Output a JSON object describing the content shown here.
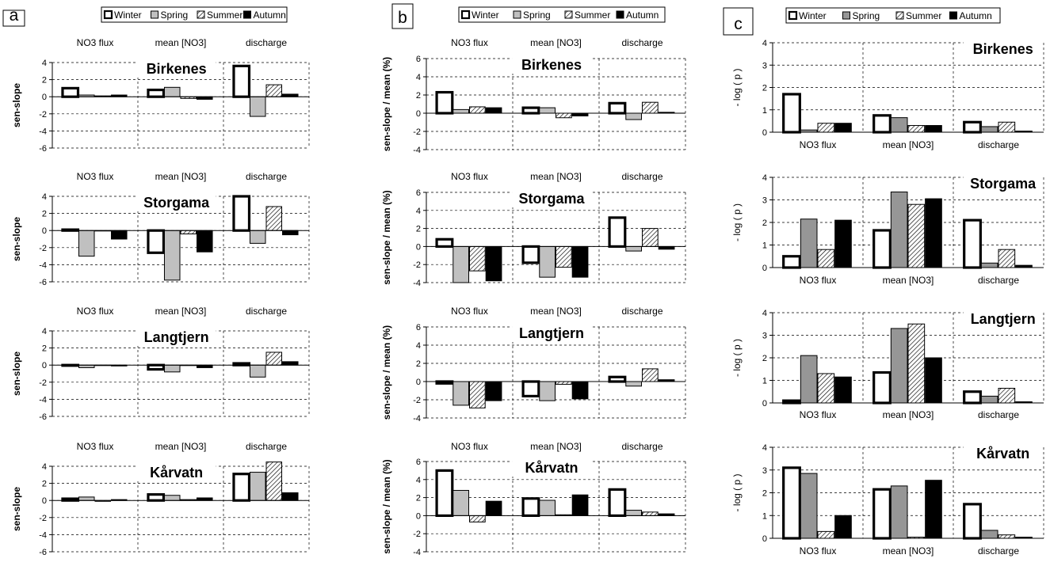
{
  "panels": [
    {
      "letter": "a",
      "legend": [
        "Winter",
        "Spring",
        "Summer",
        "Autumn"
      ],
      "categories": [
        "NO3 flux",
        "mean [NO3]",
        "discharge"
      ],
      "ylabel": "sen-slope",
      "ylim": [
        -6,
        4
      ],
      "yticks": [
        4,
        2,
        0,
        -2,
        -4,
        -6
      ],
      "category_labels_position": "top",
      "chart_data": [
        {
          "type": "bar",
          "title": "Birkenes",
          "series": [
            {
              "name": "Winter",
              "values": [
                1.0,
                0.8,
                3.6
              ]
            },
            {
              "name": "Spring",
              "values": [
                0.2,
                1.1,
                -2.3
              ]
            },
            {
              "name": "Summer",
              "values": [
                0.1,
                -0.2,
                1.4
              ]
            },
            {
              "name": "Autumn",
              "values": [
                0.2,
                -0.3,
                0.3
              ]
            }
          ]
        },
        {
          "type": "bar",
          "title": "Storgama",
          "series": [
            {
              "name": "Winter",
              "values": [
                0.1,
                -2.6,
                4.0
              ]
            },
            {
              "name": "Spring",
              "values": [
                -3.0,
                -5.8,
                -1.5
              ]
            },
            {
              "name": "Summer",
              "values": [
                0.0,
                -0.4,
                2.8
              ]
            },
            {
              "name": "Autumn",
              "values": [
                -1.0,
                -2.5,
                -0.5
              ]
            }
          ]
        },
        {
          "type": "bar",
          "title": "Langtjern",
          "series": [
            {
              "name": "Winter",
              "values": [
                0.0,
                -0.5,
                0.2
              ]
            },
            {
              "name": "Spring",
              "values": [
                -0.3,
                -0.8,
                -1.4
              ]
            },
            {
              "name": "Summer",
              "values": [
                0.0,
                0.0,
                1.5
              ]
            },
            {
              "name": "Autumn",
              "values": [
                -0.1,
                -0.3,
                0.4
              ]
            }
          ]
        },
        {
          "type": "bar",
          "title": "Kårvatn",
          "series": [
            {
              "name": "Winter",
              "values": [
                0.2,
                0.7,
                3.1
              ]
            },
            {
              "name": "Spring",
              "values": [
                0.4,
                0.6,
                3.3
              ]
            },
            {
              "name": "Summer",
              "values": [
                -0.1,
                0.1,
                4.5
              ]
            },
            {
              "name": "Autumn",
              "values": [
                0.1,
                0.3,
                0.9
              ]
            }
          ]
        }
      ]
    },
    {
      "letter": "b",
      "legend": [
        "Winter",
        "Spring",
        "Summer",
        "Autumn"
      ],
      "categories": [
        "NO3 flux",
        "mean [NO3]",
        "discharge"
      ],
      "ylabel": "sen-slope / mean (%)",
      "ylim": [
        -4,
        6
      ],
      "yticks": [
        6,
        4,
        2,
        0,
        -2,
        -4
      ],
      "category_labels_position": "top",
      "chart_data": [
        {
          "type": "bar",
          "title": "Birkenes",
          "series": [
            {
              "name": "Winter",
              "values": [
                2.3,
                0.6,
                1.1
              ]
            },
            {
              "name": "Spring",
              "values": [
                0.4,
                0.6,
                -0.7
              ]
            },
            {
              "name": "Summer",
              "values": [
                0.7,
                -0.5,
                1.2
              ]
            },
            {
              "name": "Autumn",
              "values": [
                0.6,
                -0.3,
                0.1
              ]
            }
          ]
        },
        {
          "type": "bar",
          "title": "Storgama",
          "series": [
            {
              "name": "Winter",
              "values": [
                0.8,
                -1.8,
                3.2
              ]
            },
            {
              "name": "Spring",
              "values": [
                -4.0,
                -3.4,
                -0.5
              ]
            },
            {
              "name": "Summer",
              "values": [
                -2.7,
                -2.3,
                2.0
              ]
            },
            {
              "name": "Autumn",
              "values": [
                -3.8,
                -3.4,
                -0.3
              ]
            }
          ]
        },
        {
          "type": "bar",
          "title": "Langtjern",
          "series": [
            {
              "name": "Winter",
              "values": [
                -0.2,
                -1.6,
                0.5
              ]
            },
            {
              "name": "Spring",
              "values": [
                -2.6,
                -2.1,
                -0.5
              ]
            },
            {
              "name": "Summer",
              "values": [
                -2.9,
                -0.3,
                1.4
              ]
            },
            {
              "name": "Autumn",
              "values": [
                -2.1,
                -1.9,
                0.2
              ]
            }
          ]
        },
        {
          "type": "bar",
          "title": "Kårvatn",
          "series": [
            {
              "name": "Winter",
              "values": [
                5.0,
                1.9,
                2.9
              ]
            },
            {
              "name": "Spring",
              "values": [
                2.8,
                1.7,
                0.6
              ]
            },
            {
              "name": "Summer",
              "values": [
                -0.7,
                0.1,
                0.4
              ]
            },
            {
              "name": "Autumn",
              "values": [
                1.6,
                2.3,
                0.2
              ]
            }
          ]
        }
      ]
    },
    {
      "letter": "c",
      "legend": [
        "Winter",
        "Spring",
        "Summer",
        "Autumn"
      ],
      "categories": [
        "NO3 flux",
        "mean [NO3]",
        "discharge"
      ],
      "ylabel": "- log ( p )",
      "ylim": [
        0,
        4
      ],
      "yticks": [
        4,
        3,
        2,
        1,
        0
      ],
      "category_labels_position": "bottom",
      "chart_data": [
        {
          "type": "bar",
          "title": "Birkenes",
          "series": [
            {
              "name": "Winter",
              "values": [
                1.7,
                0.75,
                0.45
              ]
            },
            {
              "name": "Spring",
              "values": [
                0.1,
                0.65,
                0.25
              ]
            },
            {
              "name": "Summer",
              "values": [
                0.4,
                0.3,
                0.45
              ]
            },
            {
              "name": "Autumn",
              "values": [
                0.4,
                0.3,
                0.05
              ]
            }
          ]
        },
        {
          "type": "bar",
          "title": "Storgama",
          "series": [
            {
              "name": "Winter",
              "values": [
                0.5,
                1.65,
                2.1
              ]
            },
            {
              "name": "Spring",
              "values": [
                2.15,
                3.35,
                0.2
              ]
            },
            {
              "name": "Summer",
              "values": [
                0.8,
                2.8,
                0.8
              ]
            },
            {
              "name": "Autumn",
              "values": [
                2.1,
                3.05,
                0.1
              ]
            }
          ]
        },
        {
          "type": "bar",
          "title": "Langtjern",
          "series": [
            {
              "name": "Winter",
              "values": [
                0.1,
                1.35,
                0.5
              ]
            },
            {
              "name": "Spring",
              "values": [
                2.1,
                3.3,
                0.3
              ]
            },
            {
              "name": "Summer",
              "values": [
                1.3,
                3.5,
                0.65
              ]
            },
            {
              "name": "Autumn",
              "values": [
                1.15,
                2.0,
                0.05
              ]
            }
          ]
        },
        {
          "type": "bar",
          "title": "Kårvatn",
          "series": [
            {
              "name": "Winter",
              "values": [
                3.1,
                2.15,
                1.5
              ]
            },
            {
              "name": "Spring",
              "values": [
                2.85,
                2.3,
                0.35
              ]
            },
            {
              "name": "Summer",
              "values": [
                0.3,
                0.05,
                0.15
              ]
            },
            {
              "name": "Autumn",
              "values": [
                1.0,
                2.55,
                0.05
              ]
            }
          ]
        }
      ]
    }
  ]
}
